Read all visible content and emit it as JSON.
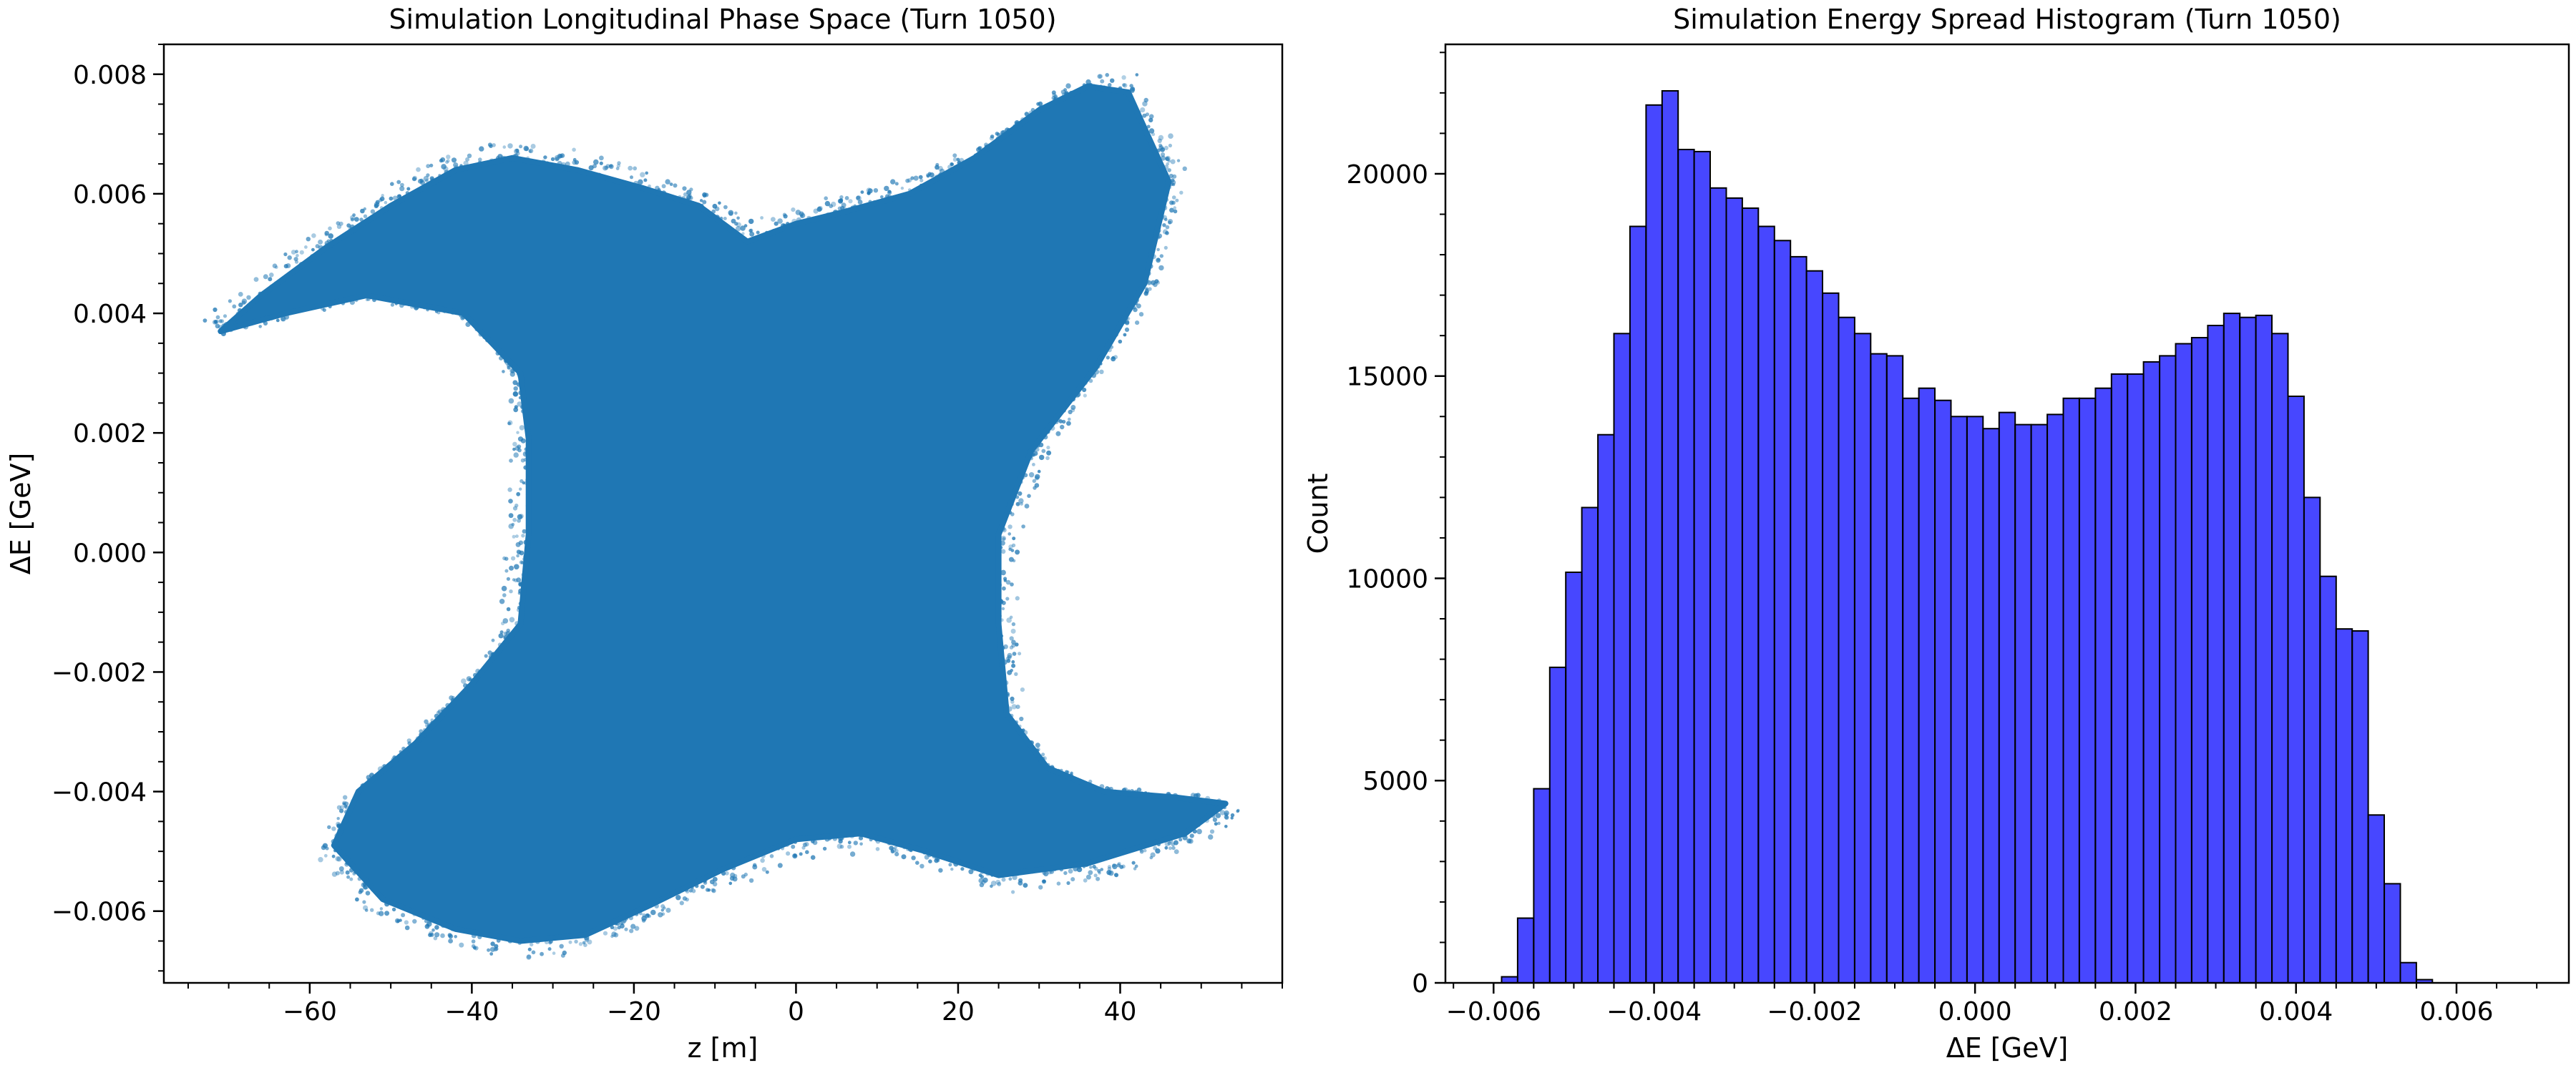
{
  "chart_data": [
    {
      "type": "scatter",
      "title": "Simulation Longitudinal Phase Space (Turn 1050)",
      "xlabel": "z [m]",
      "ylabel": "ΔE [GeV]",
      "xlim": [
        -78,
        60
      ],
      "ylim": [
        -0.0072,
        0.0085
      ],
      "xticks": [
        -60,
        -40,
        -20,
        0,
        20,
        40
      ],
      "xtick_labels": [
        "−60",
        "−40",
        "−20",
        "0",
        "20",
        "40"
      ],
      "yticks": [
        -0.006,
        -0.004,
        -0.002,
        0.0,
        0.002,
        0.004,
        0.006,
        0.008
      ],
      "ytick_labels": [
        "−0.006",
        "−0.004",
        "−0.002",
        "0.000",
        "0.002",
        "0.004",
        "0.006",
        "0.008"
      ],
      "color": "#1f77b4",
      "grid": false,
      "outline_points": [
        [
          -71,
          0.0037
        ],
        [
          -66,
          0.0043
        ],
        [
          -58,
          0.0051
        ],
        [
          -50,
          0.0058
        ],
        [
          -42,
          0.0064
        ],
        [
          -35,
          0.0066
        ],
        [
          -27,
          0.0064
        ],
        [
          -19,
          0.0061
        ],
        [
          -12,
          0.0058
        ],
        [
          -6,
          0.0052
        ],
        [
          0,
          0.0055
        ],
        [
          6,
          0.0057
        ],
        [
          14,
          0.006
        ],
        [
          22,
          0.0066
        ],
        [
          30,
          0.0074
        ],
        [
          36,
          0.0078
        ],
        [
          41,
          0.0077
        ],
        [
          46,
          0.0062
        ],
        [
          43,
          0.0045
        ],
        [
          37,
          0.0031
        ],
        [
          29,
          0.0017
        ],
        [
          25,
          0.0003
        ],
        [
          25,
          -0.0012
        ],
        [
          26,
          -0.0027
        ],
        [
          31,
          -0.0036
        ],
        [
          38,
          -0.004
        ],
        [
          47,
          -0.0041
        ],
        [
          53,
          -0.0042
        ],
        [
          48,
          -0.0047
        ],
        [
          36,
          -0.0052
        ],
        [
          25,
          -0.0054
        ],
        [
          16,
          -0.005
        ],
        [
          8,
          -0.0047
        ],
        [
          0,
          -0.0048
        ],
        [
          -9,
          -0.0053
        ],
        [
          -18,
          -0.0059
        ],
        [
          -26,
          -0.0064
        ],
        [
          -34,
          -0.0065
        ],
        [
          -42,
          -0.0063
        ],
        [
          -51,
          -0.0058
        ],
        [
          -57,
          -0.0049
        ],
        [
          -54,
          -0.004
        ],
        [
          -47,
          -0.0032
        ],
        [
          -40,
          -0.0022
        ],
        [
          -34,
          -0.0012
        ],
        [
          -33,
          0.0003
        ],
        [
          -33,
          0.0019
        ],
        [
          -34,
          0.003
        ],
        [
          -41,
          0.004
        ],
        [
          -53,
          0.0043
        ],
        [
          -63,
          0.004
        ]
      ]
    },
    {
      "type": "bar",
      "title": "Simulation Energy Spread Histogram (Turn 1050)",
      "xlabel": "ΔE [GeV]",
      "ylabel": "Count",
      "xlim": [
        -0.0066,
        0.0074
      ],
      "ylim": [
        0,
        23200
      ],
      "xticks": [
        -0.006,
        -0.004,
        -0.002,
        0.0,
        0.002,
        0.004,
        0.006
      ],
      "xtick_labels": [
        "−0.006",
        "−0.004",
        "−0.002",
        "0.000",
        "0.002",
        "0.004",
        "0.006"
      ],
      "yticks": [
        0,
        5000,
        10000,
        15000,
        20000
      ],
      "ytick_labels": [
        "0",
        "5000",
        "10000",
        "15000",
        "20000"
      ],
      "color": "#0000ff",
      "edgecolor": "#000000",
      "grid": false,
      "bin_start": -0.0059,
      "bin_width": 0.0002,
      "values": [
        150,
        1600,
        4800,
        7800,
        10150,
        11750,
        13550,
        16050,
        18700,
        21700,
        22050,
        20600,
        20550,
        19650,
        19400,
        19150,
        18700,
        18350,
        17950,
        17600,
        17050,
        16450,
        16050,
        15550,
        15500,
        14450,
        14700,
        14400,
        14000,
        14000,
        13700,
        14100,
        13800,
        13800,
        14050,
        14450,
        14450,
        14700,
        15050,
        15050,
        15350,
        15500,
        15800,
        15950,
        16250,
        16550,
        16450,
        16500,
        16050,
        14500,
        12000,
        10050,
        8750,
        8700,
        4150,
        2450,
        500,
        80
      ]
    }
  ]
}
